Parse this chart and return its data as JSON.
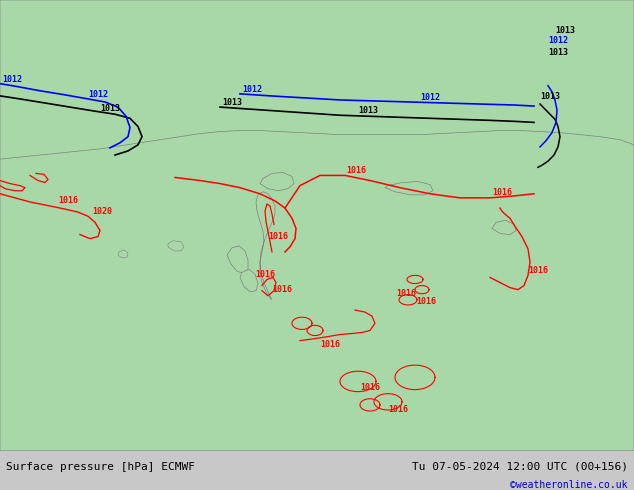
{
  "title_left": "Surface pressure [hPa] ECMWF",
  "title_right": "Tu 07-05-2024 12:00 UTC (00+156)",
  "copyright": "©weatheronline.co.uk",
  "land_color": "#a8d8a8",
  "sea_color": "#d0d0d0",
  "fig_width": 6.34,
  "fig_height": 4.9,
  "dpi": 100,
  "footer_bg": "#c8c8c8",
  "contour_red": "#ff0000",
  "contour_black": "#000000",
  "contour_blue": "#0000ff",
  "border_color": "#808080"
}
